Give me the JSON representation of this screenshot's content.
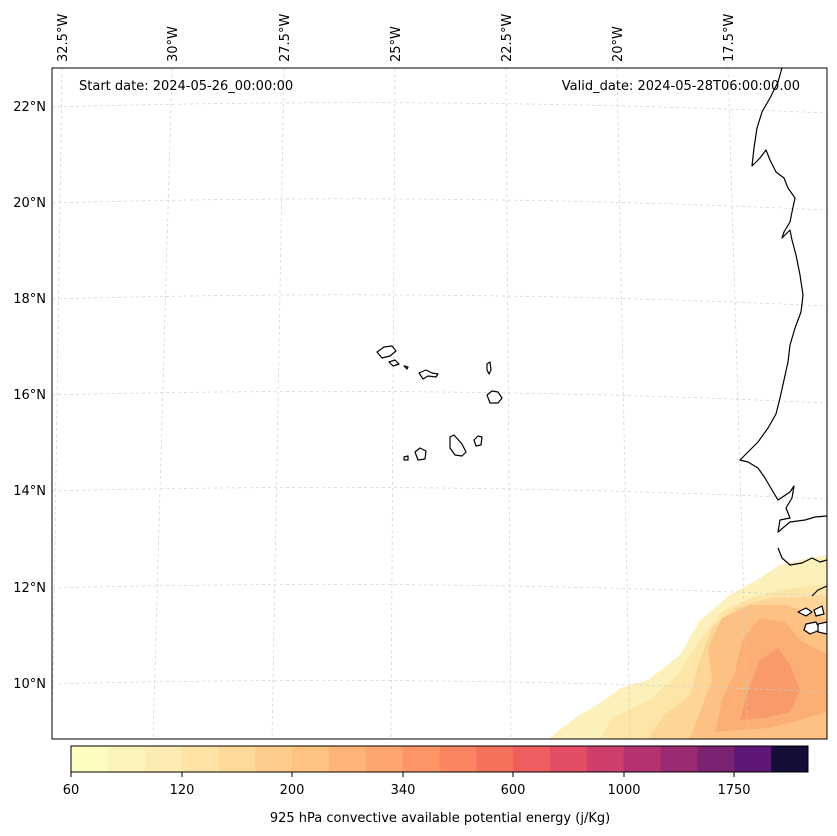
{
  "header": {
    "start_date": "Start date: 2024-05-26_00:00:00",
    "valid_date": "Valid_date: 2024-05-28T06:00:00.00"
  },
  "longitude_labels": [
    "32.5°W",
    "30°W",
    "27.5°W",
    "25°W",
    "22.5°W",
    "20°W",
    "17.5°W"
  ],
  "latitude_labels": [
    "22°N",
    "20°N",
    "18°N",
    "16°N",
    "14°N",
    "12°N",
    "10°N"
  ],
  "colorbar": {
    "label": "925 hPa convective available potential energy (j/Kg)",
    "tick_labels": [
      "60",
      "120",
      "200",
      "340",
      "600",
      "1000",
      "1750"
    ],
    "colors": [
      "#fcfdbf",
      "#fcf5bb",
      "#fdecb2",
      "#fee3a5",
      "#fed998",
      "#fecd8c",
      "#fec281",
      "#feb477",
      "#fda56f",
      "#fd9567",
      "#fb8561",
      "#f7705c",
      "#ef5e5f",
      "#e24c65",
      "#cf3f6c",
      "#b4336f",
      "#982b72",
      "#7c2273",
      "#5d1776",
      "#130d38"
    ]
  },
  "map": {
    "field_colors": [
      "#fcf1ba",
      "#fde4a7",
      "#fdd596",
      "#fdc283",
      "#fcaf74",
      "#f99a6a"
    ],
    "coastline_color": "#000000"
  }
}
